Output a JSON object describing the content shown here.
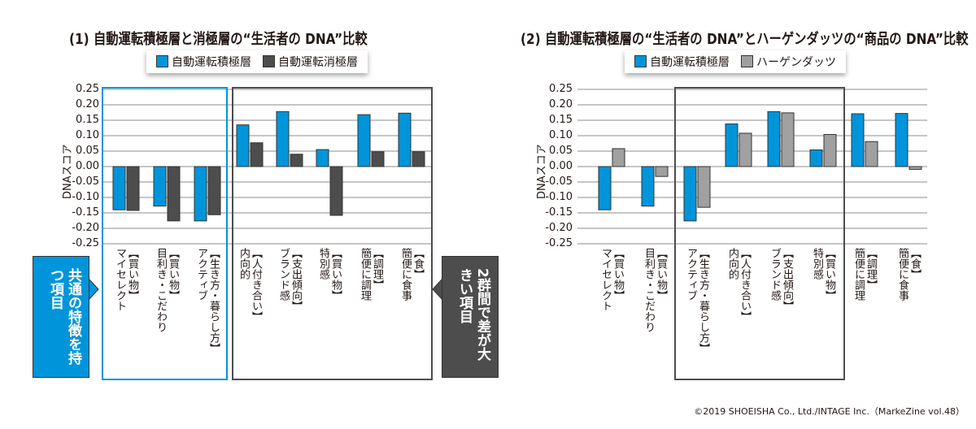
{
  "chart_data": [
    {
      "type": "bar",
      "title": "(1) 自動運転積極層と消極層の“生活者の DNA”比較",
      "ylabel": "DNAスコア",
      "ylim": [
        -0.25,
        0.25
      ],
      "yticks": [
        "0.25",
        "0.20",
        "0.15",
        "0.10",
        "0.05",
        "0.00",
        "-0.05",
        "-0.10",
        "-0.15",
        "-0.20",
        "-0.25"
      ],
      "grid": true,
      "legend": "top-center",
      "categories": [
        [
          "【買い物】",
          "マイセレクト"
        ],
        [
          "【買い物】",
          "目利き・こだわり"
        ],
        [
          "【生き方・暮らし方】",
          "アクティブ"
        ],
        [
          "【人付き合い】",
          "内向的"
        ],
        [
          "【支出傾向】",
          "ブランド感"
        ],
        [
          "【買い物】",
          "特別感"
        ],
        [
          "【調理】",
          "簡便に調理"
        ],
        [
          "【食】",
          "簡便に食事"
        ]
      ],
      "series": [
        {
          "name": "自動運転積極層",
          "color": "#0095DA",
          "values": [
            -0.14,
            -0.128,
            -0.176,
            0.135,
            0.178,
            0.055,
            0.168,
            0.173
          ]
        },
        {
          "name": "自動運転消極層",
          "color": "#4D4D4D",
          "values": [
            -0.142,
            -0.176,
            -0.156,
            0.077,
            0.04,
            -0.158,
            0.048,
            0.048
          ]
        }
      ],
      "annotations": [
        {
          "text": "共通の特徴を持つ項目",
          "color": "#0095DA"
        },
        {
          "text": "2群間で差が大きい項目",
          "color": "#4D4D4D"
        }
      ]
    },
    {
      "type": "bar",
      "title": "(2) 自動運転積極層の“生活者の DNA”とハーゲンダッツの“商品の DNA”比較",
      "ylabel": "DNAスコア",
      "ylim": [
        -0.25,
        0.25
      ],
      "yticks": [
        "0.25",
        "0.20",
        "0.15",
        "0.10",
        "0.05",
        "0.00",
        "-0.05",
        "-0.10",
        "-0.15",
        "-0.20",
        "-0.25"
      ],
      "grid": true,
      "legend": "top-center",
      "categories": [
        [
          "【買い物】",
          "マイセレクト"
        ],
        [
          "【買い物】",
          "目利き・こだわり"
        ],
        [
          "【生き方・暮らし方】",
          "アクティブ"
        ],
        [
          "【人付き合い】",
          "内向的"
        ],
        [
          "【支出傾向】",
          "ブランド感"
        ],
        [
          "【買い物】",
          "特別感"
        ],
        [
          "【調理】",
          "簡便に調理"
        ],
        [
          "【食】",
          "簡便に食事"
        ]
      ],
      "series": [
        {
          "name": "自動運転積極層",
          "color": "#0095DA",
          "values": [
            -0.14,
            -0.128,
            -0.176,
            0.138,
            0.178,
            0.054,
            0.171,
            0.172
          ]
        },
        {
          "name": "ハーゲンダッツ",
          "color": "#A0A0A0",
          "values": [
            0.058,
            -0.032,
            -0.132,
            0.108,
            0.174,
            0.104,
            0.081,
            -0.009
          ]
        }
      ]
    }
  ],
  "copyright": "©2019 SHOEISHA Co., Ltd./INTAGE Inc.（MarkeZine vol.48）"
}
